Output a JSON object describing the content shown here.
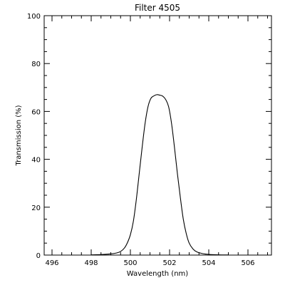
{
  "chart_data": {
    "type": "line",
    "title": "Filter 4505",
    "xlabel": "Wavelength (nm)",
    "ylabel": "Transmission (%)",
    "xlim": [
      495.6,
      507.2
    ],
    "ylim": [
      0,
      100
    ],
    "grid": false,
    "legend": "none",
    "xticks": [
      496,
      498,
      500,
      502,
      504,
      506
    ],
    "yticks": [
      0,
      20,
      40,
      60,
      80,
      100
    ],
    "xtick_labels": [
      "496",
      "498",
      "500",
      "502",
      "504",
      "506"
    ],
    "ytick_labels": [
      "0",
      "20",
      "40",
      "60",
      "80",
      "100"
    ],
    "x_minor_step": 0.5,
    "y_minor_step": 5,
    "line_color": "#000000",
    "series": [
      {
        "x": [
          498.0,
          498.5,
          499.0,
          499.3,
          499.5,
          499.7,
          499.85,
          500.0,
          500.15,
          500.3,
          500.45,
          500.6,
          500.75,
          500.9,
          501.05,
          501.2,
          501.35,
          501.5,
          501.65,
          501.8,
          501.95,
          502.1,
          502.25,
          502.4,
          502.55,
          502.7,
          502.85,
          503.0,
          503.2,
          503.4,
          503.7,
          504.0,
          504.5,
          505.0
        ],
        "y": [
          0.1,
          0.2,
          0.5,
          0.9,
          1.5,
          3.0,
          5.2,
          8.5,
          14.0,
          23.0,
          34.0,
          45.0,
          55.0,
          62.0,
          65.5,
          66.5,
          67.0,
          66.8,
          66.4,
          65.0,
          62.0,
          55.0,
          45.0,
          34.0,
          24.0,
          15.0,
          9.0,
          5.0,
          2.5,
          1.3,
          0.6,
          0.3,
          0.1,
          0.05
        ]
      }
    ]
  }
}
